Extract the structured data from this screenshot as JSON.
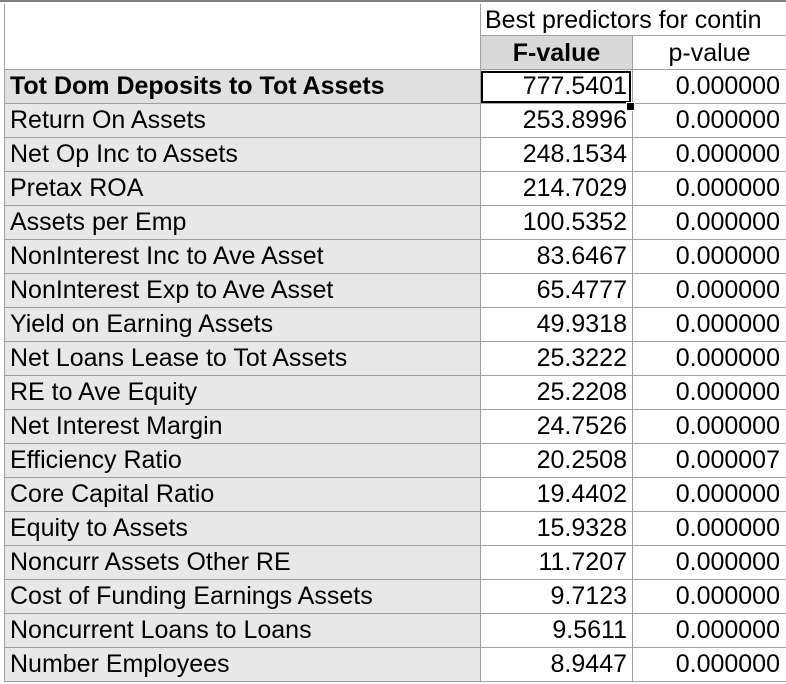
{
  "table": {
    "title": "Best predictors for contin",
    "col_fvalue": "F-value",
    "col_pvalue": "p-value",
    "rows": [
      {
        "label": "Tot Dom Deposits to Tot Assets",
        "f": "777.5401",
        "p": "0.000000"
      },
      {
        "label": "Return On Assets",
        "f": "253.8996",
        "p": "0.000000"
      },
      {
        "label": "Net Op Inc to Assets",
        "f": "248.1534",
        "p": "0.000000"
      },
      {
        "label": "Pretax ROA",
        "f": "214.7029",
        "p": "0.000000"
      },
      {
        "label": "Assets per Emp",
        "f": "100.5352",
        "p": "0.000000"
      },
      {
        "label": "NonInterest Inc to Ave Asset",
        "f": "83.6467",
        "p": "0.000000"
      },
      {
        "label": "NonInterest Exp to Ave Asset",
        "f": "65.4777",
        "p": "0.000000"
      },
      {
        "label": "Yield on Earning Assets",
        "f": "49.9318",
        "p": "0.000000"
      },
      {
        "label": "Net Loans Lease to Tot Assets",
        "f": "25.3222",
        "p": "0.000000"
      },
      {
        "label": "RE to Ave Equity",
        "f": "25.2208",
        "p": "0.000000"
      },
      {
        "label": "Net Interest Margin",
        "f": "24.7526",
        "p": "0.000000"
      },
      {
        "label": "Efficiency Ratio",
        "f": "20.2508",
        "p": "0.000007"
      },
      {
        "label": "Core Capital Ratio",
        "f": "19.4402",
        "p": "0.000000"
      },
      {
        "label": "Equity to Assets",
        "f": "15.9328",
        "p": "0.000000"
      },
      {
        "label": "Noncurr Assets Other RE",
        "f": "11.7207",
        "p": "0.000000"
      },
      {
        "label": "Cost of Funding Earnings Assets",
        "f": "9.7123",
        "p": "0.000000"
      },
      {
        "label": "Noncurrent Loans to Loans",
        "f": "9.5611",
        "p": "0.000000"
      },
      {
        "label": "Number Employees",
        "f": "8.9447",
        "p": "0.000000"
      }
    ]
  }
}
